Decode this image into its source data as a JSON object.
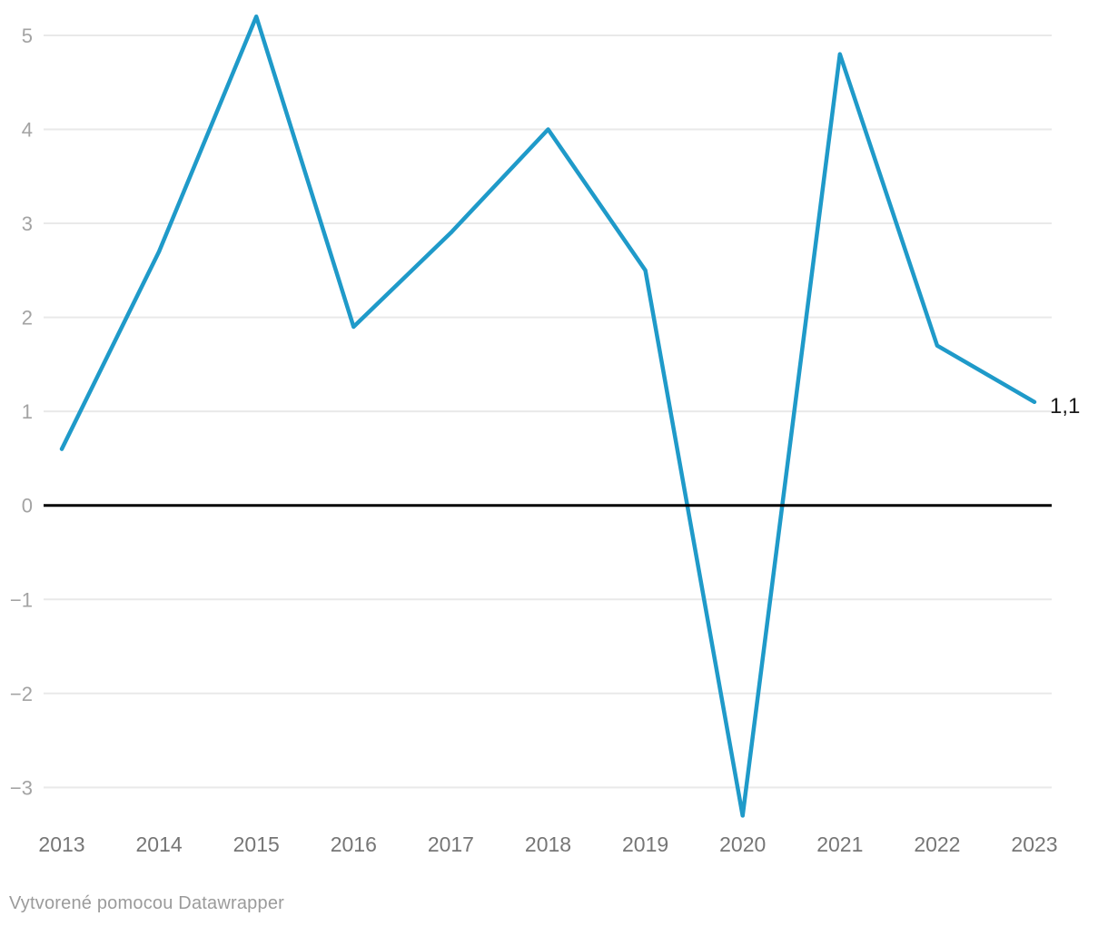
{
  "chart_data": {
    "type": "line",
    "title": "",
    "x": [
      "2013",
      "2014",
      "2015",
      "2016",
      "2017",
      "2018",
      "2019",
      "2020",
      "2021",
      "2022",
      "2023"
    ],
    "series": [
      {
        "values": [
          0.6,
          2.7,
          5.2,
          1.9,
          2.9,
          4.0,
          2.5,
          -3.3,
          4.8,
          1.7,
          1.1
        ]
      }
    ],
    "end_label": "1,1",
    "xlabel": "",
    "ylabel": "",
    "ylim": [
      -3.5,
      5.3
    ],
    "yticks": [
      5,
      4,
      3,
      2,
      1,
      0,
      -1,
      -2,
      -3
    ],
    "ytick_labels": [
      "5",
      "4",
      "3",
      "2",
      "1",
      "0",
      "−1",
      "−2",
      "−3"
    ],
    "grid": true,
    "zero_line": true,
    "legend": "none",
    "colors": {
      "line": "#1f9ac9",
      "grid": "#e9e9e9",
      "zero_line": "#000000",
      "ytick_label": "#a3a3a3",
      "xtick_label": "#767676",
      "end_label": "#1a1a1a"
    }
  },
  "footer": {
    "attribution": "Vytvorené pomocou Datawrapper"
  }
}
